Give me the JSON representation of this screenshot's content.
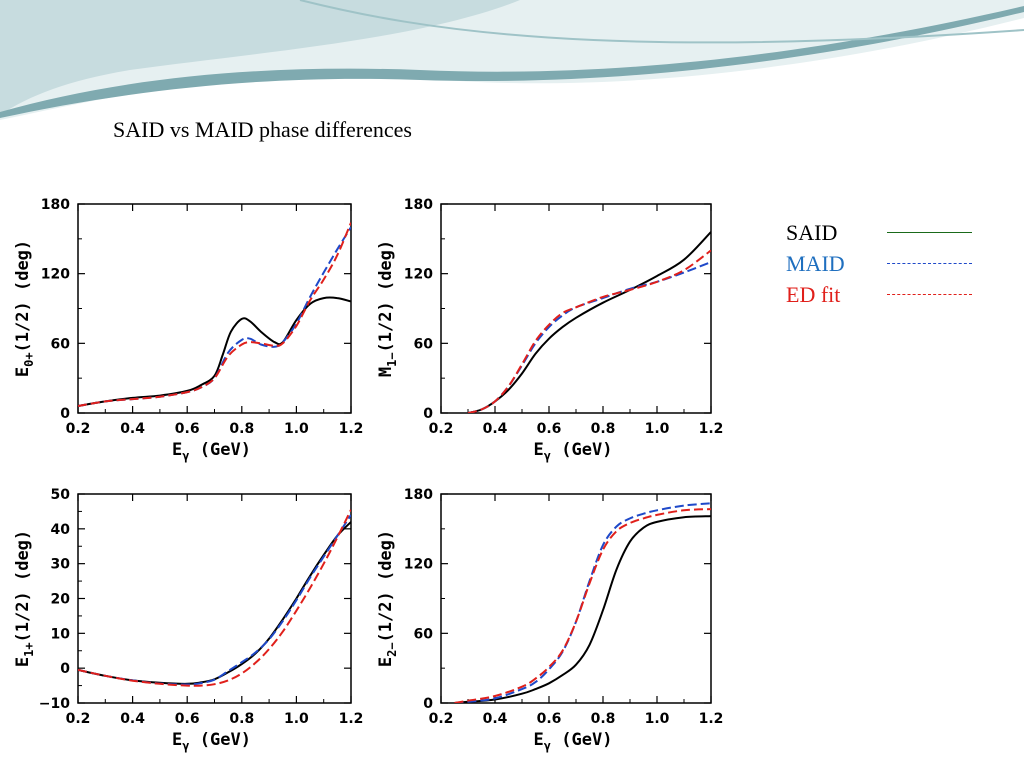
{
  "slide": {
    "title": "SAID vs MAID phase differences",
    "theme_colors": {
      "wave_dark": "#7faab0",
      "wave_light": "#c7dcdf",
      "wave_pale": "#e6f0f1"
    }
  },
  "legend": {
    "items": [
      {
        "label": "SAID",
        "color": "#000000",
        "line_color": "#1a6a1a",
        "style": "solid"
      },
      {
        "label": "MAID",
        "color": "#1f6fbf",
        "line_color": "#1f49c9",
        "style": "dashed"
      },
      {
        "label": "ED fit",
        "color": "#e0201b",
        "line_color": "#e0201b",
        "style": "dashed"
      }
    ]
  },
  "chart_data": [
    {
      "type": "line",
      "id": "e0plus",
      "ylabel_main": "E",
      "ylabel_sub": "0+",
      "ylabel_rest": "(1/2)  (deg)",
      "xlabel_main": "E",
      "xlabel_sub": "γ",
      "xlabel_rest": " (GeV)",
      "xlim": [
        0.2,
        1.2
      ],
      "ylim": [
        0,
        180
      ],
      "xticks": [
        0.2,
        0.4,
        0.6,
        0.8,
        1.0,
        1.2
      ],
      "xtick_labels": [
        "0.2",
        "0.4",
        "0.6",
        "0.8",
        "1.0",
        "1.2"
      ],
      "yticks": [
        0,
        60,
        120,
        180
      ],
      "ytick_labels": [
        "0",
        "60",
        "120",
        "180"
      ],
      "series": [
        {
          "name": "SAID",
          "color": "#000000",
          "style": "solid",
          "x": [
            0.2,
            0.3,
            0.4,
            0.5,
            0.6,
            0.65,
            0.7,
            0.73,
            0.76,
            0.8,
            0.83,
            0.87,
            0.92,
            0.95,
            1.0,
            1.05,
            1.1,
            1.15,
            1.2
          ],
          "y": [
            6,
            10,
            13,
            15,
            19,
            24,
            32,
            50,
            70,
            81,
            79,
            70,
            61,
            61,
            80,
            94,
            99,
            99,
            96
          ]
        },
        {
          "name": "MAID",
          "color": "#1f49c9",
          "style": "dashed",
          "x": [
            0.2,
            0.3,
            0.4,
            0.5,
            0.6,
            0.65,
            0.7,
            0.75,
            0.8,
            0.83,
            0.87,
            0.92,
            0.95,
            1.0,
            1.05,
            1.1,
            1.15,
            1.2
          ],
          "y": [
            6,
            10,
            12,
            14,
            18,
            22,
            30,
            52,
            63,
            64,
            59,
            57,
            61,
            77,
            100,
            121,
            141,
            160
          ]
        },
        {
          "name": "ED fit",
          "color": "#e0201b",
          "style": "dashed",
          "x": [
            0.2,
            0.3,
            0.4,
            0.5,
            0.6,
            0.65,
            0.7,
            0.75,
            0.8,
            0.83,
            0.87,
            0.92,
            0.95,
            1.0,
            1.05,
            1.1,
            1.15,
            1.2
          ],
          "y": [
            6,
            10,
            12,
            14,
            18,
            22,
            30,
            49,
            59,
            61,
            60,
            58,
            60,
            75,
            97,
            115,
            136,
            164
          ]
        }
      ]
    },
    {
      "type": "line",
      "id": "m1minus",
      "ylabel_main": "M",
      "ylabel_sub": "1−",
      "ylabel_rest": "(1/2)  (deg)",
      "xlabel_main": "E",
      "xlabel_sub": "γ",
      "xlabel_rest": " (GeV)",
      "xlim": [
        0.2,
        1.2
      ],
      "ylim": [
        0,
        180
      ],
      "xticks": [
        0.2,
        0.4,
        0.6,
        0.8,
        1.0,
        1.2
      ],
      "xtick_labels": [
        "0.2",
        "0.4",
        "0.6",
        "0.8",
        "1.0",
        "1.2"
      ],
      "yticks": [
        0,
        60,
        120,
        180
      ],
      "ytick_labels": [
        "0",
        "60",
        "120",
        "180"
      ],
      "series": [
        {
          "name": "SAID",
          "color": "#000000",
          "style": "solid",
          "x": [
            0.3,
            0.35,
            0.4,
            0.45,
            0.5,
            0.55,
            0.6,
            0.65,
            0.7,
            0.8,
            0.9,
            1.0,
            1.1,
            1.2
          ],
          "y": [
            0,
            3,
            10,
            20,
            34,
            51,
            64,
            74,
            82,
            95,
            106,
            118,
            132,
            156
          ]
        },
        {
          "name": "MAID",
          "color": "#1f49c9",
          "style": "dashed",
          "x": [
            0.3,
            0.35,
            0.4,
            0.45,
            0.5,
            0.55,
            0.6,
            0.65,
            0.7,
            0.8,
            0.9,
            1.0,
            1.1,
            1.2
          ],
          "y": [
            0,
            3,
            10,
            23,
            41,
            60,
            74,
            84,
            91,
            99,
            107,
            113,
            121,
            130
          ]
        },
        {
          "name": "ED fit",
          "color": "#e0201b",
          "style": "dashed",
          "x": [
            0.3,
            0.35,
            0.4,
            0.45,
            0.5,
            0.55,
            0.6,
            0.65,
            0.7,
            0.8,
            0.9,
            1.0,
            1.1,
            1.2
          ],
          "y": [
            0,
            3,
            10,
            23,
            42,
            62,
            76,
            86,
            91,
            100,
            106,
            113,
            123,
            140
          ]
        }
      ]
    },
    {
      "type": "line",
      "id": "e1plus",
      "ylabel_main": "E",
      "ylabel_sub": "1+",
      "ylabel_rest": "(1/2)  (deg)",
      "xlabel_main": "E",
      "xlabel_sub": "γ",
      "xlabel_rest": " (GeV)",
      "xlim": [
        0.2,
        1.2
      ],
      "ylim": [
        -10,
        50
      ],
      "xticks": [
        0.2,
        0.4,
        0.6,
        0.8,
        1.0,
        1.2
      ],
      "xtick_labels": [
        "0.2",
        "0.4",
        "0.6",
        "0.8",
        "1.0",
        "1.2"
      ],
      "yticks": [
        -10,
        0,
        10,
        20,
        30,
        40,
        50
      ],
      "ytick_labels": [
        "−10",
        "0",
        "10",
        "20",
        "30",
        "40",
        "50"
      ],
      "series": [
        {
          "name": "SAID",
          "color": "#000000",
          "style": "solid",
          "x": [
            0.2,
            0.3,
            0.4,
            0.5,
            0.6,
            0.65,
            0.7,
            0.75,
            0.8,
            0.85,
            0.9,
            0.95,
            1.0,
            1.05,
            1.1,
            1.15,
            1.2
          ],
          "y": [
            -0.5,
            -2.2,
            -3.5,
            -4.2,
            -4.5,
            -4.1,
            -3.2,
            -1.2,
            1.2,
            4.2,
            8.5,
            14,
            20,
            26.5,
            32.5,
            38,
            42
          ]
        },
        {
          "name": "MAID",
          "color": "#1f49c9",
          "style": "dashed",
          "x": [
            0.2,
            0.3,
            0.4,
            0.5,
            0.6,
            0.65,
            0.7,
            0.75,
            0.8,
            0.85,
            0.9,
            0.95,
            1.0,
            1.05,
            1.1,
            1.15,
            1.2
          ],
          "y": [
            -0.5,
            -2.2,
            -3.5,
            -4.4,
            -4.7,
            -4.3,
            -3.3,
            -0.8,
            1.7,
            4.5,
            8.3,
            13.5,
            19.5,
            26,
            32,
            38,
            44
          ]
        },
        {
          "name": "ED fit",
          "color": "#e0201b",
          "style": "dashed",
          "x": [
            0.2,
            0.3,
            0.4,
            0.5,
            0.6,
            0.65,
            0.7,
            0.75,
            0.8,
            0.85,
            0.9,
            0.95,
            1.0,
            1.05,
            1.1,
            1.15,
            1.2
          ],
          "y": [
            -0.5,
            -2.2,
            -3.6,
            -4.5,
            -5,
            -5,
            -4.6,
            -3.5,
            -1.5,
            1.5,
            5.5,
            10.5,
            16.5,
            23,
            30,
            37.5,
            45.5
          ]
        }
      ]
    },
    {
      "type": "line",
      "id": "e2minus",
      "ylabel_main": "E",
      "ylabel_sub": "2−",
      "ylabel_rest": "(1/2)  (deg)",
      "xlabel_main": "E",
      "xlabel_sub": "γ",
      "xlabel_rest": " (GeV)",
      "xlim": [
        0.2,
        1.2
      ],
      "ylim": [
        0,
        180
      ],
      "xticks": [
        0.2,
        0.4,
        0.6,
        0.8,
        1.0,
        1.2
      ],
      "xtick_labels": [
        "0.2",
        "0.4",
        "0.6",
        "0.8",
        "1.0",
        "1.2"
      ],
      "yticks": [
        0,
        60,
        120,
        180
      ],
      "ytick_labels": [
        "0",
        "60",
        "120",
        "180"
      ],
      "series": [
        {
          "name": "SAID",
          "color": "#000000",
          "style": "solid",
          "x": [
            0.25,
            0.3,
            0.4,
            0.5,
            0.55,
            0.6,
            0.65,
            0.7,
            0.75,
            0.8,
            0.85,
            0.9,
            0.95,
            1.0,
            1.1,
            1.2
          ],
          "y": [
            0,
            1,
            3,
            8,
            12,
            17,
            24,
            33,
            50,
            80,
            115,
            139,
            151,
            156,
            160,
            161
          ]
        },
        {
          "name": "MAID",
          "color": "#1f49c9",
          "style": "dashed",
          "x": [
            0.25,
            0.3,
            0.4,
            0.5,
            0.55,
            0.6,
            0.65,
            0.7,
            0.75,
            0.8,
            0.85,
            0.9,
            0.95,
            1.0,
            1.1,
            1.2
          ],
          "y": [
            0,
            1,
            4,
            12,
            18,
            29,
            44,
            70,
            105,
            136,
            152,
            159,
            163,
            166,
            170,
            172
          ]
        },
        {
          "name": "ED fit",
          "color": "#e0201b",
          "style": "dashed",
          "x": [
            0.25,
            0.3,
            0.4,
            0.5,
            0.55,
            0.6,
            0.65,
            0.7,
            0.75,
            0.8,
            0.85,
            0.9,
            0.95,
            1.0,
            1.1,
            1.2
          ],
          "y": [
            0,
            2,
            6,
            14,
            21,
            31,
            45,
            70,
            103,
            132,
            148,
            155,
            159,
            162,
            166,
            167
          ]
        }
      ]
    }
  ]
}
